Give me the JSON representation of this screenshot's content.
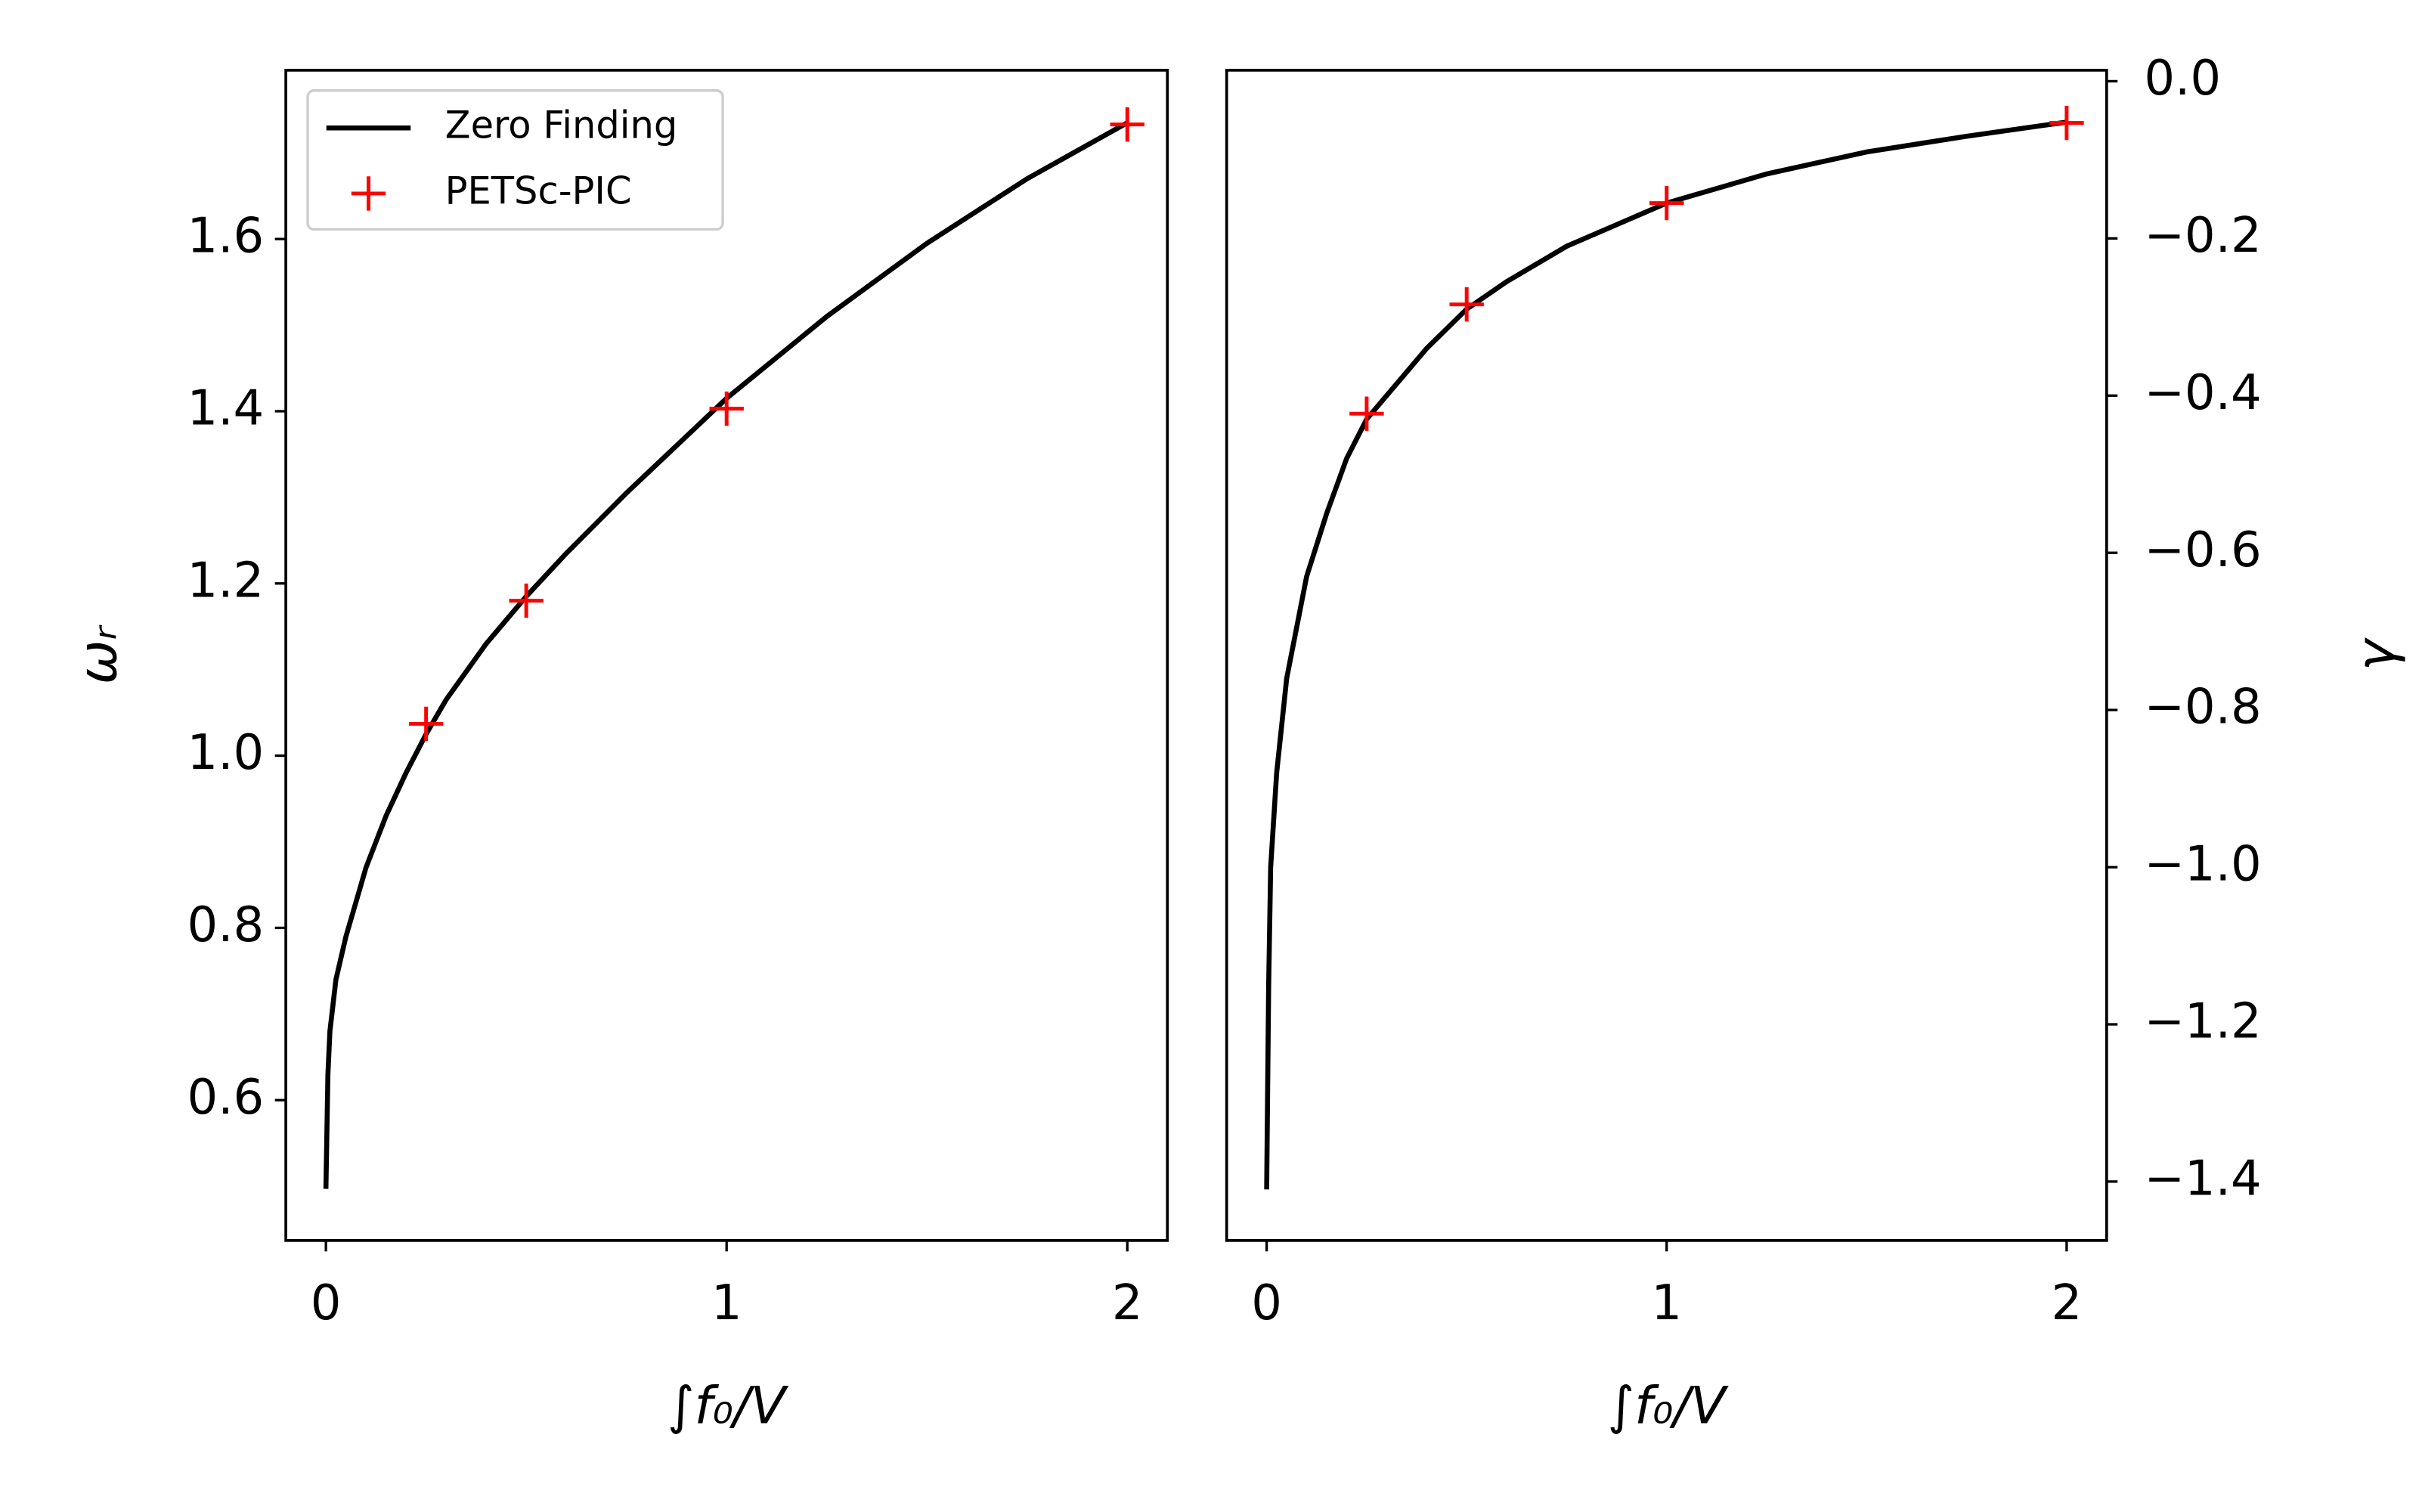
{
  "chart_data": [
    {
      "type": "line",
      "xlabel": "∫f₀/V",
      "ylabel": "ωᵣ",
      "y_axis_side": "left",
      "xlim": [
        -0.1,
        2.1
      ],
      "ylim": [
        0.437,
        1.796
      ],
      "xticks": [
        0,
        1,
        2
      ],
      "yticks": [
        0.6,
        0.8,
        {
          "value": 1.0,
          "label": "1.0"
        },
        1.2,
        1.4,
        1.6
      ],
      "legend": "upper left",
      "series": [
        {
          "name": "Zero Finding",
          "color": "#000000",
          "style": "line",
          "x": [
            0,
            0.005,
            0.01,
            0.025,
            0.05,
            0.1,
            0.15,
            0.2,
            0.25,
            0.3,
            0.4,
            0.5,
            0.6,
            0.75,
            1,
            1.25,
            1.5,
            1.75,
            2
          ],
          "values": [
            0.497,
            0.63,
            0.68,
            0.74,
            0.79,
            0.87,
            0.93,
            0.98,
            1.025,
            1.065,
            1.13,
            1.185,
            1.235,
            1.305,
            1.415,
            1.51,
            1.595,
            1.67,
            1.735
          ]
        },
        {
          "name": "PETSc-PIC",
          "color": "#ff0000",
          "style": "plus",
          "x": [
            0.25,
            0.5,
            1,
            2
          ],
          "values": [
            1.037,
            1.18,
            1.403,
            1.733
          ]
        }
      ]
    },
    {
      "type": "line",
      "xlabel": "∫f₀/V",
      "ylabel": "γ",
      "y_axis_side": "right",
      "xlim": [
        -0.1,
        2.1
      ],
      "ylim": [
        -1.475,
        0.014
      ],
      "xticks": [
        0,
        1,
        2
      ],
      "yticks": [
        {
          "value": 0,
          "label": "0.0"
        },
        {
          "value": -0.2,
          "label": "−0.2"
        },
        {
          "value": -0.4,
          "label": "−0.4"
        },
        {
          "value": -0.6,
          "label": "−0.6"
        },
        {
          "value": -0.8,
          "label": "−0.8"
        },
        {
          "value": -1.0,
          "label": "−1.0"
        },
        {
          "value": -1.2,
          "label": "−1.2"
        },
        {
          "value": -1.4,
          "label": "−1.4"
        }
      ],
      "series": [
        {
          "name": "Zero Finding",
          "color": "#000000",
          "style": "line",
          "x": [
            0,
            0.005,
            0.01,
            0.025,
            0.05,
            0.1,
            0.15,
            0.2,
            0.25,
            0.3,
            0.4,
            0.5,
            0.6,
            0.75,
            1,
            1.25,
            1.5,
            1.75,
            2
          ],
          "values": [
            -1.41,
            -1.15,
            -1.0,
            -0.88,
            -0.76,
            -0.63,
            -0.55,
            -0.48,
            -0.43,
            -0.4,
            -0.34,
            -0.29,
            -0.255,
            -0.21,
            -0.155,
            -0.118,
            -0.09,
            -0.07,
            -0.052
          ]
        },
        {
          "name": "PETSc-PIC",
          "color": "#ff0000",
          "style": "plus",
          "x": [
            0.25,
            0.5,
            1,
            2
          ],
          "values": [
            -0.423,
            -0.284,
            -0.155,
            -0.053
          ]
        }
      ]
    }
  ]
}
